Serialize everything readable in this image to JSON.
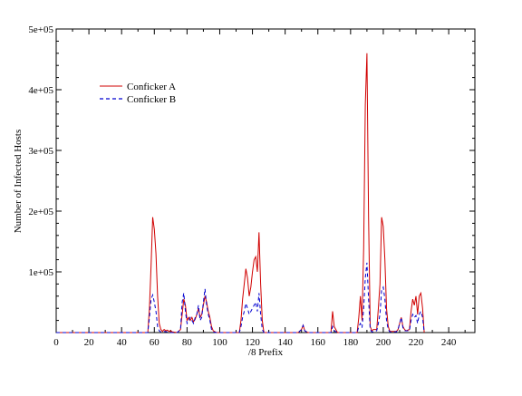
{
  "chart_data": {
    "type": "line",
    "title": "",
    "xlabel": "/8 Prefix",
    "ylabel": "Number of Infected Hosts",
    "xlim": [
      0,
      256
    ],
    "ylim": [
      0,
      500000
    ],
    "x_ticks": [
      0,
      20,
      40,
      60,
      80,
      100,
      120,
      140,
      160,
      180,
      200,
      220,
      240
    ],
    "x_tick_labels": [
      "0",
      "20",
      "40",
      "60",
      "80",
      "100",
      "120",
      "140",
      "160",
      "180",
      "200",
      "220",
      "240"
    ],
    "y_ticks": [
      100000,
      200000,
      300000,
      400000,
      500000
    ],
    "y_tick_labels": [
      "1e+05",
      "2e+05",
      "3e+05",
      "4e+05",
      "5e+05"
    ],
    "grid": false,
    "legend": {
      "position": "upper-left",
      "entries": [
        "Conficker A",
        "Conficker B"
      ]
    },
    "series": [
      {
        "name": "Conficker A",
        "color": "#d00000",
        "style": "solid",
        "points": [
          [
            0,
            0
          ],
          [
            56,
            0
          ],
          [
            57,
            40000
          ],
          [
            58,
            110000
          ],
          [
            59,
            190000
          ],
          [
            60,
            170000
          ],
          [
            61,
            130000
          ],
          [
            62,
            60000
          ],
          [
            63,
            15000
          ],
          [
            64,
            5000
          ],
          [
            65,
            2000
          ],
          [
            66,
            5000
          ],
          [
            67,
            3000
          ],
          [
            68,
            4000
          ],
          [
            69,
            2000
          ],
          [
            70,
            3000
          ],
          [
            71,
            1000
          ],
          [
            74,
            0
          ],
          [
            76,
            5000
          ],
          [
            77,
            30000
          ],
          [
            78,
            55000
          ],
          [
            79,
            45000
          ],
          [
            80,
            20000
          ],
          [
            81,
            25000
          ],
          [
            82,
            20000
          ],
          [
            83,
            25000
          ],
          [
            84,
            18000
          ],
          [
            85,
            22000
          ],
          [
            86,
            30000
          ],
          [
            87,
            40000
          ],
          [
            88,
            25000
          ],
          [
            89,
            30000
          ],
          [
            90,
            45000
          ],
          [
            91,
            60000
          ],
          [
            92,
            50000
          ],
          [
            93,
            35000
          ],
          [
            94,
            25000
          ],
          [
            95,
            10000
          ],
          [
            96,
            3000
          ],
          [
            98,
            0
          ],
          [
            112,
            0
          ],
          [
            113,
            20000
          ],
          [
            114,
            55000
          ],
          [
            115,
            80000
          ],
          [
            116,
            105000
          ],
          [
            117,
            90000
          ],
          [
            118,
            60000
          ],
          [
            119,
            75000
          ],
          [
            120,
            100000
          ],
          [
            121,
            120000
          ],
          [
            122,
            125000
          ],
          [
            123,
            100000
          ],
          [
            124,
            165000
          ],
          [
            125,
            80000
          ],
          [
            126,
            20000
          ],
          [
            127,
            0
          ],
          [
            148,
            0
          ],
          [
            150,
            5000
          ],
          [
            151,
            12000
          ],
          [
            152,
            3000
          ],
          [
            154,
            0
          ],
          [
            168,
            0
          ],
          [
            169,
            35000
          ],
          [
            170,
            10000
          ],
          [
            172,
            0
          ],
          [
            184,
            0
          ],
          [
            185,
            25000
          ],
          [
            186,
            60000
          ],
          [
            187,
            20000
          ],
          [
            188,
            140000
          ],
          [
            189,
            375000
          ],
          [
            190,
            460000
          ],
          [
            191,
            190000
          ],
          [
            192,
            10000
          ],
          [
            193,
            3000
          ],
          [
            194,
            5000
          ],
          [
            196,
            5000
          ],
          [
            197,
            40000
          ],
          [
            198,
            80000
          ],
          [
            199,
            190000
          ],
          [
            200,
            175000
          ],
          [
            201,
            120000
          ],
          [
            202,
            40000
          ],
          [
            203,
            10000
          ],
          [
            204,
            2000
          ],
          [
            208,
            2000
          ],
          [
            209,
            5000
          ],
          [
            210,
            15000
          ],
          [
            211,
            25000
          ],
          [
            212,
            10000
          ],
          [
            213,
            5000
          ],
          [
            214,
            3000
          ],
          [
            216,
            5000
          ],
          [
            217,
            35000
          ],
          [
            218,
            55000
          ],
          [
            219,
            45000
          ],
          [
            220,
            60000
          ],
          [
            221,
            30000
          ],
          [
            222,
            60000
          ],
          [
            223,
            65000
          ],
          [
            224,
            40000
          ],
          [
            225,
            0
          ]
        ]
      },
      {
        "name": "Conficker B",
        "color": "#0000d0",
        "style": "dashed",
        "points": [
          [
            0,
            0
          ],
          [
            56,
            0
          ],
          [
            57,
            25000
          ],
          [
            58,
            55000
          ],
          [
            59,
            62000
          ],
          [
            60,
            50000
          ],
          [
            61,
            35000
          ],
          [
            62,
            10000
          ],
          [
            63,
            3000
          ],
          [
            64,
            1000
          ],
          [
            66,
            2000
          ],
          [
            68,
            1000
          ],
          [
            70,
            0
          ],
          [
            74,
            0
          ],
          [
            76,
            5000
          ],
          [
            77,
            50000
          ],
          [
            78,
            65000
          ],
          [
            79,
            35000
          ],
          [
            80,
            15000
          ],
          [
            81,
            20000
          ],
          [
            82,
            25000
          ],
          [
            83,
            20000
          ],
          [
            84,
            15000
          ],
          [
            85,
            25000
          ],
          [
            86,
            30000
          ],
          [
            87,
            45000
          ],
          [
            88,
            20000
          ],
          [
            89,
            25000
          ],
          [
            90,
            50000
          ],
          [
            91,
            72000
          ],
          [
            92,
            45000
          ],
          [
            93,
            30000
          ],
          [
            94,
            20000
          ],
          [
            95,
            5000
          ],
          [
            96,
            1000
          ],
          [
            98,
            0
          ],
          [
            112,
            0
          ],
          [
            113,
            10000
          ],
          [
            114,
            25000
          ],
          [
            115,
            35000
          ],
          [
            116,
            48000
          ],
          [
            117,
            40000
          ],
          [
            118,
            30000
          ],
          [
            119,
            35000
          ],
          [
            120,
            40000
          ],
          [
            121,
            45000
          ],
          [
            122,
            50000
          ],
          [
            123,
            35000
          ],
          [
            124,
            65000
          ],
          [
            125,
            30000
          ],
          [
            126,
            5000
          ],
          [
            127,
            0
          ],
          [
            148,
            0
          ],
          [
            150,
            5000
          ],
          [
            151,
            12000
          ],
          [
            152,
            3000
          ],
          [
            154,
            0
          ],
          [
            168,
            0
          ],
          [
            169,
            10000
          ],
          [
            170,
            3000
          ],
          [
            172,
            0
          ],
          [
            184,
            0
          ],
          [
            185,
            10000
          ],
          [
            186,
            15000
          ],
          [
            187,
            8000
          ],
          [
            188,
            40000
          ],
          [
            189,
            90000
          ],
          [
            190,
            115000
          ],
          [
            191,
            55000
          ],
          [
            192,
            5000
          ],
          [
            193,
            1000
          ],
          [
            196,
            3000
          ],
          [
            197,
            15000
          ],
          [
            198,
            30000
          ],
          [
            199,
            70000
          ],
          [
            200,
            75000
          ],
          [
            201,
            55000
          ],
          [
            202,
            20000
          ],
          [
            203,
            5000
          ],
          [
            204,
            1000
          ],
          [
            208,
            1000
          ],
          [
            209,
            5000
          ],
          [
            210,
            15000
          ],
          [
            211,
            25000
          ],
          [
            212,
            8000
          ],
          [
            213,
            3000
          ],
          [
            216,
            3000
          ],
          [
            217,
            20000
          ],
          [
            218,
            30000
          ],
          [
            219,
            25000
          ],
          [
            220,
            28000
          ],
          [
            221,
            15000
          ],
          [
            222,
            30000
          ],
          [
            223,
            35000
          ],
          [
            224,
            25000
          ],
          [
            225,
            0
          ]
        ]
      }
    ]
  }
}
